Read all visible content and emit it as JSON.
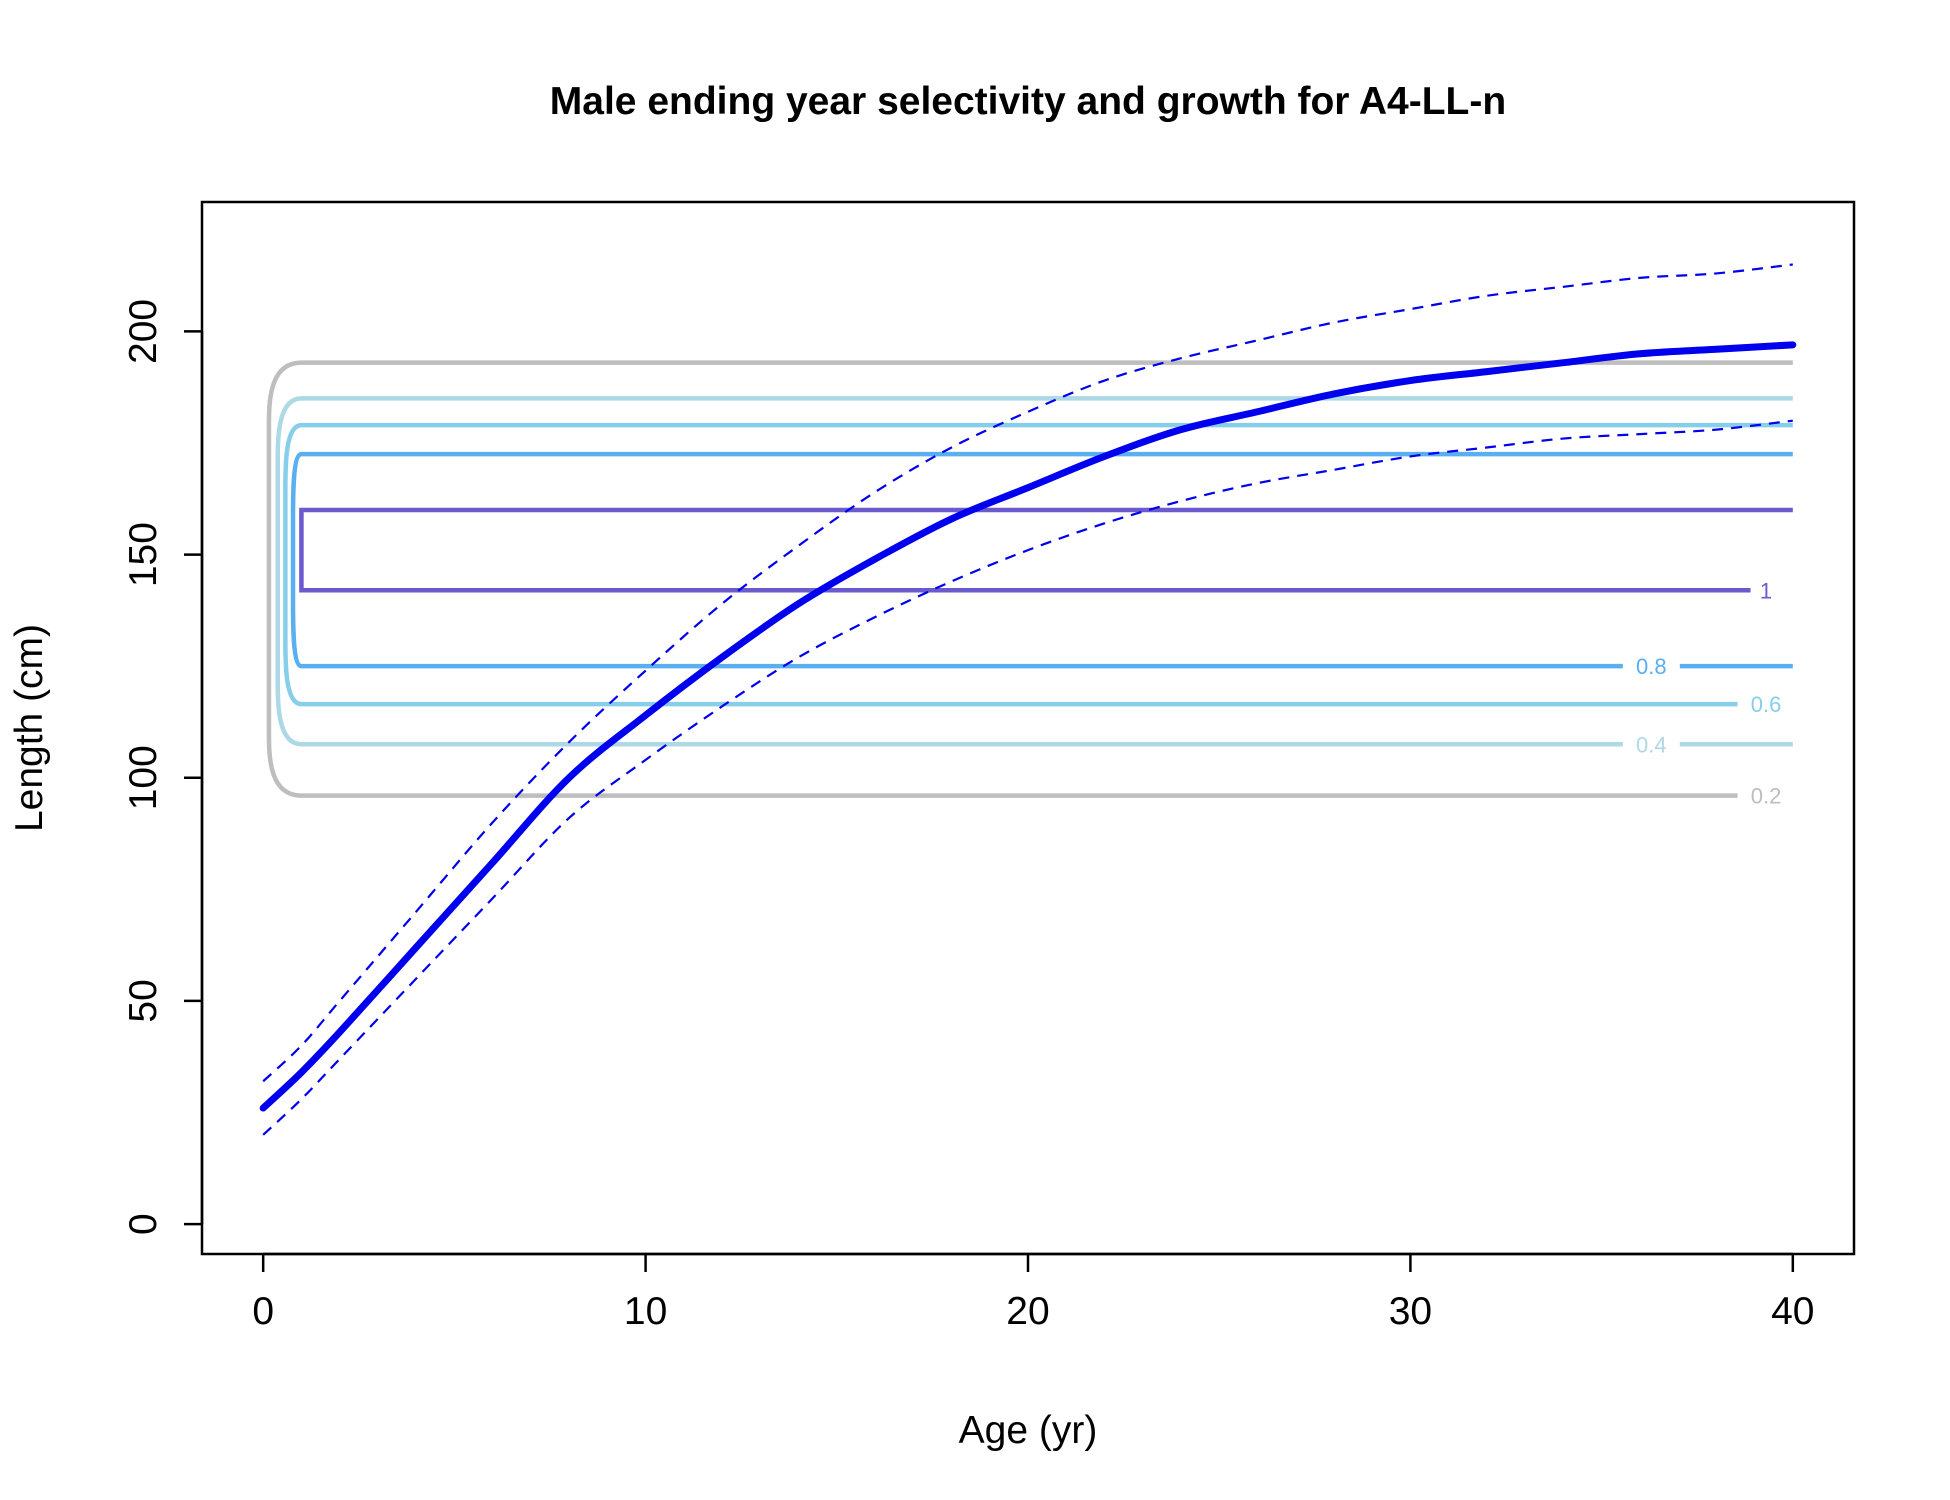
{
  "chart_data": {
    "type": "line",
    "title": "Male ending year selectivity and growth for A4-LL-n",
    "xlabel": "Age (yr)",
    "ylabel": "Length (cm)",
    "xlim": [
      -1.6,
      41.6
    ],
    "ylim": [
      -6.7,
      229
    ],
    "x_ticks": [
      0,
      10,
      20,
      30,
      40
    ],
    "y_ticks": [
      0,
      50,
      100,
      150,
      200
    ],
    "grid": false,
    "colors": {
      "growth": "#0000ee",
      "contour_0.2": "#bebebe",
      "contour_0.4": "#add8e6",
      "contour_0.6": "#87ceeb",
      "contour_0.8": "#5aaff0",
      "contour_1": "#6a5acd"
    },
    "series": [
      {
        "role": "mean",
        "style": "solid",
        "x": [
          0,
          1,
          2,
          4,
          6,
          8,
          10,
          12,
          14,
          16,
          18,
          20,
          22,
          24,
          26,
          28,
          30,
          32,
          34,
          36,
          38,
          40
        ],
        "y": [
          26,
          34,
          43,
          62,
          81,
          100,
          114,
          127,
          139,
          149,
          158,
          165,
          172,
          178,
          182,
          186,
          189,
          191,
          193,
          195,
          196,
          197
        ]
      },
      {
        "role": "upper",
        "style": "dashed",
        "x": [
          0,
          1,
          2,
          4,
          6,
          8,
          10,
          12,
          14,
          16,
          18,
          20,
          22,
          24,
          26,
          28,
          30,
          32,
          34,
          36,
          38,
          40
        ],
        "y": [
          32,
          40,
          50,
          70,
          90,
          108,
          124,
          139,
          152,
          164,
          174,
          182,
          189,
          194,
          198,
          202,
          205,
          208,
          210,
          212,
          213,
          215
        ]
      },
      {
        "role": "lower",
        "style": "dashed",
        "x": [
          0,
          1,
          2,
          4,
          6,
          8,
          10,
          12,
          14,
          16,
          18,
          20,
          22,
          24,
          26,
          28,
          30,
          32,
          34,
          36,
          38,
          40
        ],
        "y": [
          20,
          28,
          37,
          55,
          73,
          91,
          104,
          116,
          127,
          136,
          144,
          151,
          157,
          162,
          166,
          169,
          172,
          174,
          176,
          177,
          178,
          180
        ]
      }
    ],
    "contours": [
      {
        "label": "0.2",
        "top": 193,
        "bottom": 96,
        "label_x": 39.3,
        "label_y": 96
      },
      {
        "label": "0.4",
        "top": 185,
        "bottom": 107.5,
        "label_x": 36.3,
        "label_y": 107.5
      },
      {
        "label": "0.6",
        "top": 179,
        "bottom": 116.5,
        "label_x": 39.3,
        "label_y": 116.5
      },
      {
        "label": "0.8",
        "top": 172.5,
        "bottom": 125,
        "label_x": 36.3,
        "label_y": 125
      },
      {
        "label": "1",
        "top": 160,
        "bottom": 142,
        "label_x": 39.3,
        "label_y": 142
      }
    ]
  }
}
